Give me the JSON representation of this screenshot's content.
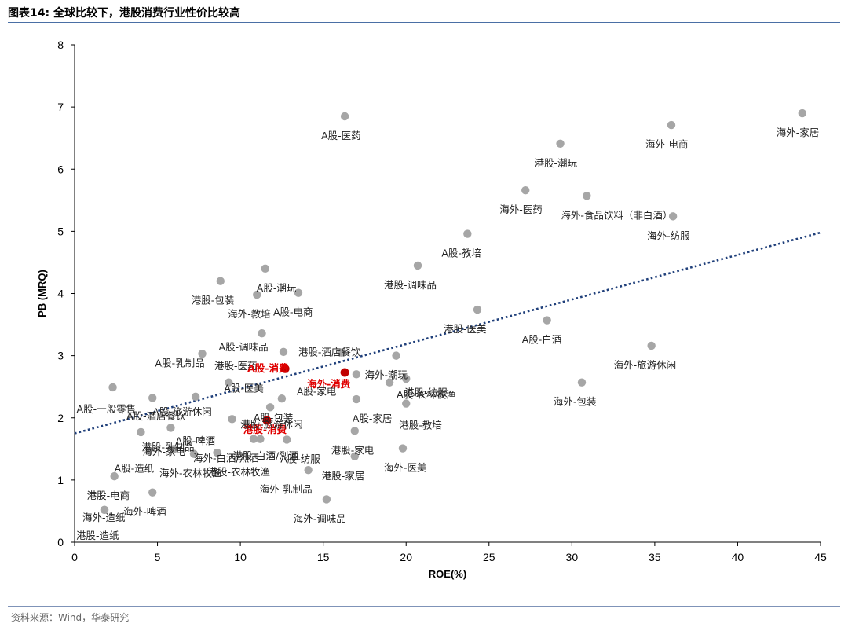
{
  "header": {
    "title": "图表14:  全球比较下，港股消费行业性价比较高"
  },
  "footer": {
    "source": "资料来源：Wind，华泰研究"
  },
  "colors": {
    "point": "#a6a6a6",
    "highlight": "#c00000",
    "highlight_label": "#e00000",
    "trend": "#1f3f7a",
    "rule": "#4a6fa5"
  },
  "chart_data": {
    "type": "scatter",
    "xlabel": "ROE(%)",
    "ylabel": "PB (MRQ)",
    "xlim": [
      0,
      45
    ],
    "ylim": [
      0,
      8
    ],
    "xticks": [
      0,
      5,
      10,
      15,
      20,
      25,
      30,
      35,
      40,
      45
    ],
    "yticks": [
      0,
      1,
      2,
      3,
      4,
      5,
      6,
      7,
      8
    ],
    "grid": false,
    "legend": "none",
    "trendline": {
      "style": "dotted",
      "x0": 0,
      "y0": 1.75,
      "x1": 45,
      "y1": 4.98
    },
    "points": [
      {
        "label": "A股-医药",
        "x": 16.3,
        "y": 6.85
      },
      {
        "label": "海外-家居",
        "x": 43.9,
        "y": 6.9
      },
      {
        "label": "海外-电商",
        "x": 36.0,
        "y": 6.71
      },
      {
        "label": "港股-潮玩",
        "x": 29.3,
        "y": 6.41
      },
      {
        "label": "海外-医药",
        "x": 27.2,
        "y": 5.66
      },
      {
        "label": "海外-食品饮料（非白酒）",
        "x": 30.9,
        "y": 5.57
      },
      {
        "label": "海外-纺服",
        "x": 36.1,
        "y": 5.24
      },
      {
        "label": "A股-教培",
        "x": 23.7,
        "y": 4.96
      },
      {
        "label": "港股-调味品",
        "x": 20.7,
        "y": 4.45
      },
      {
        "label": "港股-包装",
        "x": 8.8,
        "y": 4.2
      },
      {
        "label": "A股-潮玩",
        "x": 11.5,
        "y": 4.4
      },
      {
        "label": "海外-教培",
        "x": 11.0,
        "y": 3.98
      },
      {
        "label": "A股-电商",
        "x": 13.5,
        "y": 4.01
      },
      {
        "label": "港股-医美",
        "x": 24.3,
        "y": 3.74
      },
      {
        "label": "A股-白酒",
        "x": 28.5,
        "y": 3.57
      },
      {
        "label": "A股-调味品",
        "x": 11.3,
        "y": 3.36
      },
      {
        "label": "港股-医药",
        "x": 12.6,
        "y": 3.06
      },
      {
        "label": "海外-潮玩",
        "x": 19.4,
        "y": 3.0
      },
      {
        "label": "海外-旅游休闲",
        "x": 34.8,
        "y": 3.16
      },
      {
        "label": "A股-乳制品",
        "x": 7.7,
        "y": 3.03
      },
      {
        "label": "A股-消费",
        "x": 12.7,
        "y": 2.79,
        "highlight": true
      },
      {
        "label": "港股-酒店餐饮",
        "x": 16.1,
        "y": 3.05
      },
      {
        "label": "海外-消费",
        "x": 16.3,
        "y": 2.73,
        "highlight": true
      },
      {
        "label": "港股-纺服",
        "x": 20.0,
        "y": 2.63
      },
      {
        "label": "A股-医美",
        "x": 9.3,
        "y": 2.57
      },
      {
        "label": "A股-家电",
        "x": 17.0,
        "y": 2.7
      },
      {
        "label": "A股-农林牧渔",
        "x": 19.0,
        "y": 2.57
      },
      {
        "label": "海外-包装",
        "x": 30.6,
        "y": 2.57
      },
      {
        "label": "A股-一般零售",
        "x": 2.3,
        "y": 2.49
      },
      {
        "label": "A股-旅游休闲",
        "x": 4.7,
        "y": 2.32
      },
      {
        "label": "港股-消费",
        "x": 11.6,
        "y": 1.96,
        "highlight": true
      },
      {
        "label": "A股-包装",
        "x": 12.5,
        "y": 2.31
      },
      {
        "label": "A股-家居",
        "x": 17.0,
        "y": 2.3
      },
      {
        "label": "港股-教培",
        "x": 20.0,
        "y": 2.23
      },
      {
        "label": "A股-酒店餐饮",
        "x": 7.3,
        "y": 2.34
      },
      {
        "label": "A股-啤酒",
        "x": 9.5,
        "y": 1.98
      },
      {
        "label": "港股-旅游休闲",
        "x": 11.8,
        "y": 2.17
      },
      {
        "label": "海外-家电",
        "x": 4.0,
        "y": 1.77
      },
      {
        "label": "港股-白酒/烈酒",
        "x": 11.2,
        "y": 1.66
      },
      {
        "label": "A股-造纸",
        "x": 6.0,
        "y": 1.5
      },
      {
        "label": "港股-家电",
        "x": 16.9,
        "y": 1.79
      },
      {
        "label": "港股-乳制品",
        "x": 5.8,
        "y": 1.84
      },
      {
        "label": "海外-农林牧渔",
        "x": 7.2,
        "y": 1.42
      },
      {
        "label": "港股-农林牧渔",
        "x": 8.6,
        "y": 1.44
      },
      {
        "label": "A股-纺服",
        "x": 12.8,
        "y": 1.65
      },
      {
        "label": "海外-白酒/烈酒",
        "x": 10.8,
        "y": 1.66
      },
      {
        "label": "海外-医美",
        "x": 19.8,
        "y": 1.51
      },
      {
        "label": "港股-家居",
        "x": 16.9,
        "y": 1.38
      },
      {
        "label": "海外-乳制品",
        "x": 14.1,
        "y": 1.16
      },
      {
        "label": "港股-电商",
        "x": 2.4,
        "y": 1.06
      },
      {
        "label": "海外-啤酒",
        "x": 4.7,
        "y": 0.8
      },
      {
        "label": "海外-调味品",
        "x": 15.2,
        "y": 0.69
      },
      {
        "label": "海外-造纸",
        "x": 1.8,
        "y": 0.52
      },
      {
        "label": "港股-造纸",
        "x": 1.8,
        "y": 0.52
      }
    ]
  }
}
